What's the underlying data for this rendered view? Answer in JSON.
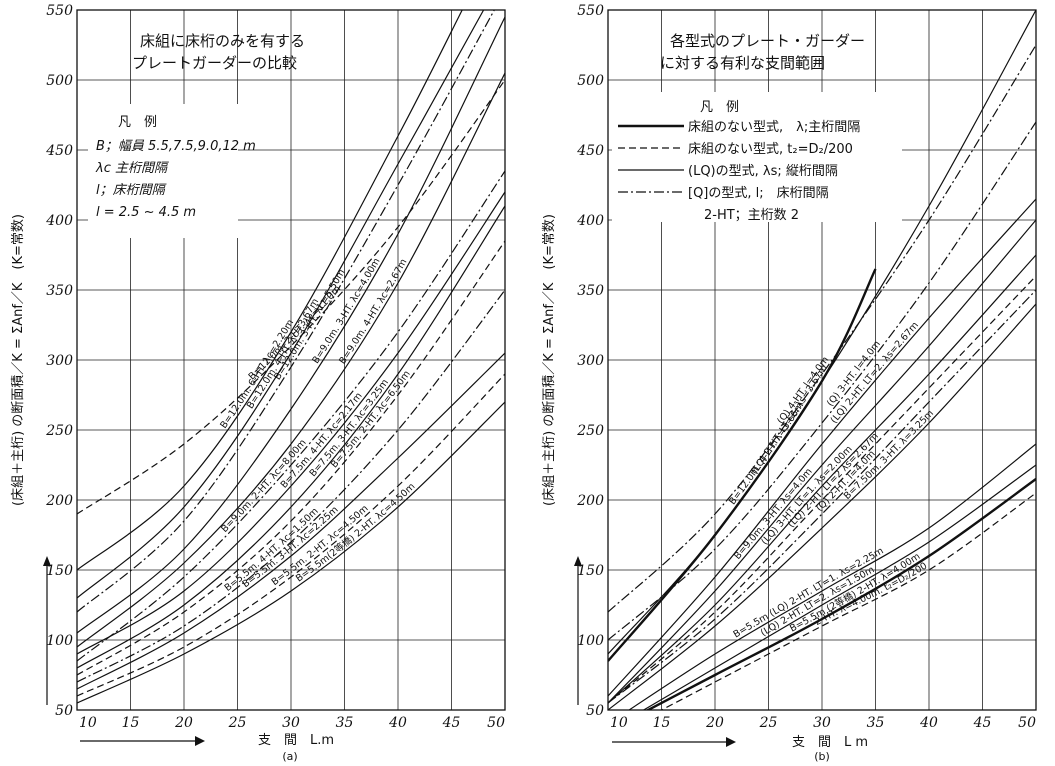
{
  "chart_data": [
    {
      "type": "line",
      "caption": "(a)",
      "title_lines": [
        "床組に床桁のみを有する",
        "プレートガーダーの比較"
      ],
      "legend_heading": "凡　例",
      "legend_lines": [
        "B；幅員 5.5,7.5,9.0,12 m",
        "λc 主桁間隔",
        "l；床桁間隔",
        "l = 2.5 ~ 4.5 m"
      ],
      "xlabel": "支　間　L.m",
      "ylabel": "(床組＋主桁) の断面積／K = ΣAnf／K　(K=常数)",
      "xlim": [
        10,
        50
      ],
      "ylim": [
        50,
        550
      ],
      "xticks": [
        "10",
        "15",
        "20",
        "25",
        "30",
        "35",
        "40",
        "45",
        "50"
      ],
      "yticks": [
        "50",
        "100",
        "150",
        "200",
        "250",
        "300",
        "350",
        "400",
        "450",
        "500",
        "550"
      ],
      "grid": true,
      "series": [
        {
          "name": "B=12.0m. 6-HT. λc=2.20m",
          "style": "solid",
          "x": [
            10,
            20,
            30,
            40,
            46
          ],
          "y": [
            150,
            210,
            320,
            460,
            550
          ]
        },
        {
          "name": "B=12.0m. 4-HT. λc=3.67m",
          "style": "solid",
          "x": [
            10,
            20,
            30,
            40,
            48
          ],
          "y": [
            130,
            195,
            305,
            440,
            550
          ]
        },
        {
          "name": "B=12.0m. 3-HT. λc=5.50m",
          "style": "dashdot",
          "x": [
            10,
            20,
            30,
            40,
            49
          ],
          "y": [
            120,
            185,
            295,
            425,
            550
          ]
        },
        {
          "name": "B=9.0m. 3-HT. λc=4.00m",
          "style": "solid",
          "x": [
            10,
            20,
            30,
            40,
            50
          ],
          "y": [
            105,
            165,
            265,
            390,
            545
          ]
        },
        {
          "name": "B=9.0m. 4-HT. λc=2.67m",
          "style": "solid",
          "x": [
            10,
            20,
            30,
            40,
            50
          ],
          "y": [
            95,
            155,
            240,
            355,
            505
          ]
        },
        {
          "name": "B=9.0m. 2-HT. λc=8.00m",
          "style": "dashdot",
          "x": [
            10,
            20,
            30,
            40,
            50
          ],
          "y": [
            85,
            145,
            225,
            320,
            435
          ]
        },
        {
          "name": "B=12.0m. 2-HT. λc=11.0m",
          "style": "dashed",
          "x": [
            10,
            20,
            30,
            40,
            50
          ],
          "y": [
            190,
            240,
            310,
            395,
            500
          ]
        },
        {
          "name": "B=7.5m. 4-HT. λc=2.17m",
          "style": "solid",
          "x": [
            10,
            20,
            30,
            40,
            50
          ],
          "y": [
            90,
            135,
            210,
            305,
            420
          ]
        },
        {
          "name": "B=7.5m. 3-HT. λc=3.25m",
          "style": "solid",
          "x": [
            10,
            20,
            30,
            40,
            50
          ],
          "y": [
            80,
            125,
            195,
            290,
            410
          ]
        },
        {
          "name": "B=7.5m. 2-HT. λc=6.50m",
          "style": "dashed",
          "x": [
            10,
            20,
            30,
            40,
            50
          ],
          "y": [
            75,
            120,
            185,
            275,
            385
          ]
        },
        {
          "name": "B=5.5m. 4-HT. λc=1.50m",
          "style": "dashdot",
          "x": [
            10,
            20,
            30,
            40,
            50
          ],
          "y": [
            70,
            110,
            170,
            250,
            350
          ]
        },
        {
          "name": "B=5.5m. 3-HT. λc=2.25m",
          "style": "solid",
          "x": [
            10,
            20,
            30,
            40,
            50
          ],
          "y": [
            65,
            105,
            160,
            230,
            305
          ]
        },
        {
          "name": "B=5.5m. 2-HT. λc=4.50m",
          "style": "dashed",
          "x": [
            10,
            20,
            30,
            40,
            50
          ],
          "y": [
            60,
            95,
            145,
            210,
            290
          ]
        },
        {
          "name": "B=5.5m(2等橋) 2-HT. λc=4.50m",
          "style": "solid",
          "x": [
            10,
            20,
            30,
            40,
            50
          ],
          "y": [
            55,
            90,
            135,
            195,
            270
          ]
        }
      ]
    },
    {
      "type": "line",
      "caption": "(b)",
      "title_lines": [
        "各型式のプレート・ガーダー",
        "に対する有利な支間範囲"
      ],
      "legend_heading": "凡　例",
      "legend_entries": [
        {
          "style": "bold",
          "text": "床組のない型式,　λ;主桁間隔"
        },
        {
          "style": "dashed",
          "text": "床組のない型式, t₂=D₂/200"
        },
        {
          "style": "solid",
          "text": "(LQ)の型式, λs; 縦桁間隔"
        },
        {
          "style": "dashdot",
          "text": "[Q]の型式, l;　床桁間隔"
        },
        {
          "style": "none",
          "text": "2-HT；主桁数 2"
        }
      ],
      "xlabel": "支　間　L m",
      "ylabel": "(床組＋主桁) の断面積／K = ΣAnf／K　(K=常数)",
      "xlim": [
        10,
        50
      ],
      "ylim": [
        50,
        550
      ],
      "xticks": [
        "10",
        "15",
        "20",
        "25",
        "30",
        "35",
        "40",
        "45",
        "50"
      ],
      "yticks": [
        "50",
        "100",
        "150",
        "200",
        "250",
        "300",
        "350",
        "400",
        "450",
        "500",
        "550"
      ],
      "grid": true,
      "series": [
        {
          "name": "(LQ) 2-HT. LT=2. λs=3.67m",
          "style": "solid",
          "x": [
            10,
            20,
            30,
            40,
            50
          ],
          "y": [
            90,
            175,
            285,
            410,
            550
          ]
        },
        {
          "name": "(Q) 4-HT. l=4.0m",
          "style": "dashdot",
          "x": [
            10,
            20,
            30,
            40,
            50
          ],
          "y": [
            120,
            190,
            290,
            400,
            525
          ]
        },
        {
          "name": "B=12.0m. 4-HT. λ=3.66m",
          "style": "bold",
          "x": [
            10,
            20,
            30,
            35
          ],
          "y": [
            85,
            175,
            285,
            365
          ]
        },
        {
          "name": "(Q) 3-HT. l=4.0m",
          "style": "dashdot",
          "x": [
            10,
            20,
            30,
            40,
            50
          ],
          "y": [
            100,
            165,
            255,
            355,
            470
          ]
        },
        {
          "name": "(LQ) 2-HT. LT=2. λs=2.67m",
          "style": "solid",
          "x": [
            10,
            20,
            30,
            40,
            50
          ],
          "y": [
            60,
            145,
            240,
            330,
            415
          ]
        },
        {
          "name": "B=9.0m. 3-HT. λs=4.0m",
          "style": "solid",
          "x": [
            10,
            20,
            30,
            40,
            50
          ],
          "y": [
            55,
            135,
            225,
            310,
            400
          ]
        },
        {
          "name": "(LQ) 3-HT. LT=1. λs=2.00m",
          "style": "solid",
          "x": [
            10,
            20,
            30,
            40,
            50
          ],
          "y": [
            55,
            125,
            210,
            290,
            375
          ]
        },
        {
          "name": "(LQ) 2-HT. LT=2 λs=2.67m",
          "style": "dashed",
          "x": [
            10,
            20,
            30,
            40,
            50
          ],
          "y": [
            55,
            120,
            200,
            280,
            360
          ]
        },
        {
          "name": "(Q) 2-HT. l=4.0m",
          "style": "dashdot",
          "x": [
            10,
            20,
            30,
            40,
            50
          ],
          "y": [
            55,
            115,
            190,
            270,
            350
          ]
        },
        {
          "name": "B=7.50m. 3-HT. λ=3.25m",
          "style": "solid",
          "x": [
            10,
            20,
            30,
            40,
            50
          ],
          "y": [
            50,
            110,
            180,
            255,
            340
          ]
        },
        {
          "name": "B=5.5m (LQ) 2-HT. LT=1. λs=2.25m",
          "style": "solid",
          "x": [
            10,
            20,
            30,
            40,
            50
          ],
          "y": [
            40,
            90,
            135,
            180,
            240
          ]
        },
        {
          "name": "(LQ) 2-HT. LT=2. λs=1.50m",
          "style": "solid",
          "x": [
            10,
            20,
            30,
            40,
            50
          ],
          "y": [
            35,
            80,
            125,
            170,
            225
          ]
        },
        {
          "name": "B=5.5m (2等橋) 2-HT. λ=4.00m",
          "style": "bold",
          "x": [
            10,
            20,
            30,
            40,
            50
          ],
          "y": [
            35,
            75,
            115,
            160,
            215
          ]
        },
        {
          "name": "2-HT. λ=4.00m. t₂=D₂/200",
          "style": "dashed",
          "x": [
            10,
            20,
            30,
            40,
            50
          ],
          "y": [
            30,
            70,
            110,
            150,
            205
          ]
        }
      ]
    }
  ]
}
